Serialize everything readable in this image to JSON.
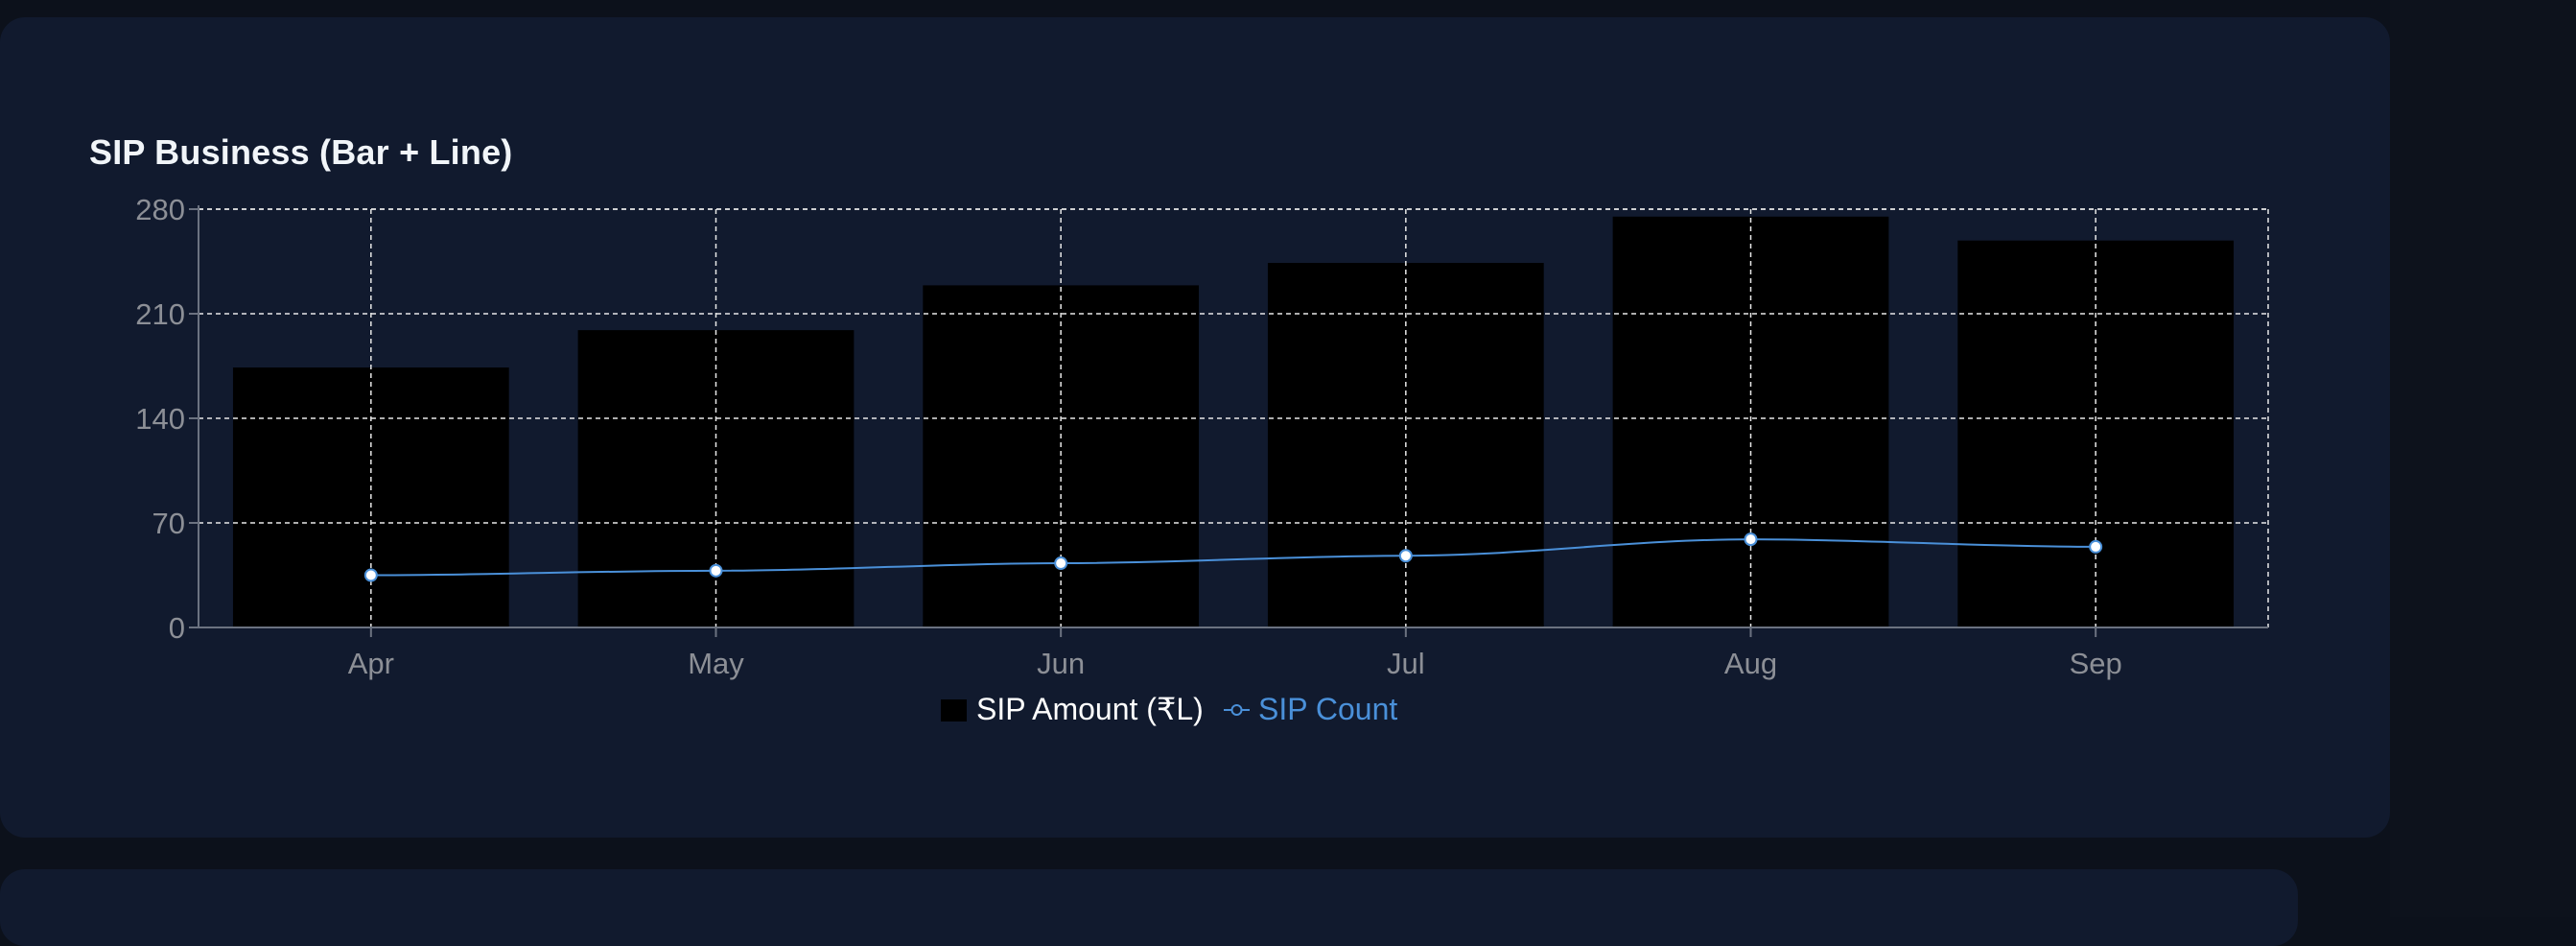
{
  "card": {
    "title": "SIP Business (Bar + Line)"
  },
  "colors": {
    "page_bg": "#0c111b",
    "card_bg": "#111a2e",
    "bar_fill": "#000000",
    "line_color": "#4a90d9",
    "axis_text": "#8c8f96",
    "grid": "#e8e8e8",
    "legend_text": "#ffffff"
  },
  "chart_data": {
    "type": "bar",
    "categories": [
      "Apr",
      "May",
      "Jun",
      "Jul",
      "Aug",
      "Sep"
    ],
    "series": [
      {
        "name": "SIP Amount (₹L)",
        "type": "bar",
        "values": [
          174,
          199,
          229,
          244,
          275,
          259
        ]
      },
      {
        "name": "SIP Count",
        "type": "line",
        "values": [
          35,
          38,
          43,
          48,
          59,
          54
        ]
      }
    ],
    "yticks": [
      0,
      70,
      140,
      210,
      280
    ],
    "ylim": [
      0,
      280
    ],
    "grid": true,
    "legend": "bottom-center"
  }
}
